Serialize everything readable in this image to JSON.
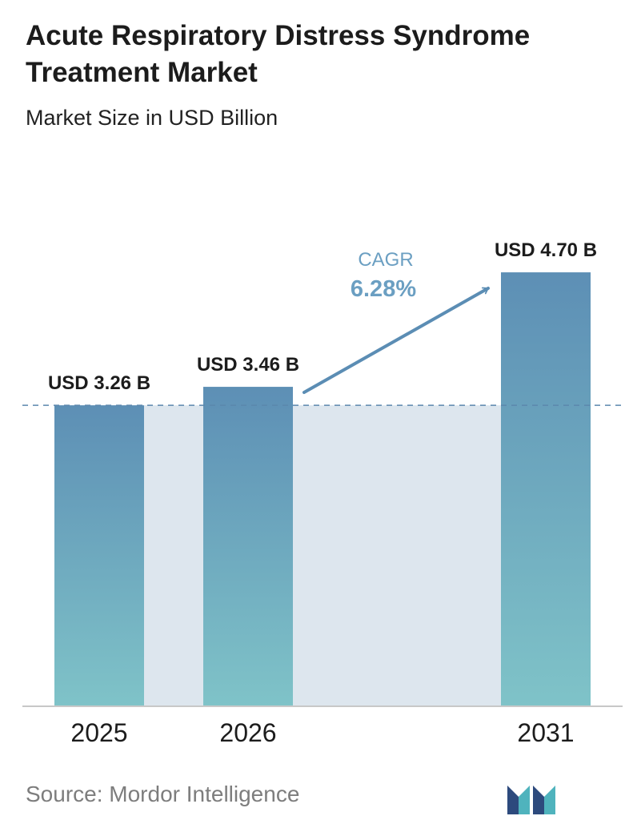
{
  "header": {
    "title": "Acute Respiratory Distress Syndrome Treatment Market",
    "subtitle": "Market Size in USD Billion"
  },
  "chart_data": {
    "type": "bar",
    "categories": [
      "2025",
      "2026",
      "2031"
    ],
    "values": [
      3.26,
      3.46,
      4.7
    ],
    "value_labels": [
      "USD 3.26 B",
      "USD 3.46 B",
      "USD 4.70 B"
    ],
    "cagr_label": "CAGR",
    "cagr_value": "6.28%",
    "reference_line": 3.26,
    "grid": false,
    "colors": {
      "bar_top": "#5d8fb5",
      "bar_bottom": "#7fc3c8",
      "band": "#dde6ee",
      "cagr_label": "#6b9fc2",
      "arrow": "#5b8db4",
      "dashed_line": "#5b87ad",
      "axis": "#c8c8c8"
    }
  },
  "footer": {
    "source": "Source:  Mordor Intelligence",
    "logo_colors": [
      "#2d4a7d",
      "#4fb3bd"
    ]
  }
}
